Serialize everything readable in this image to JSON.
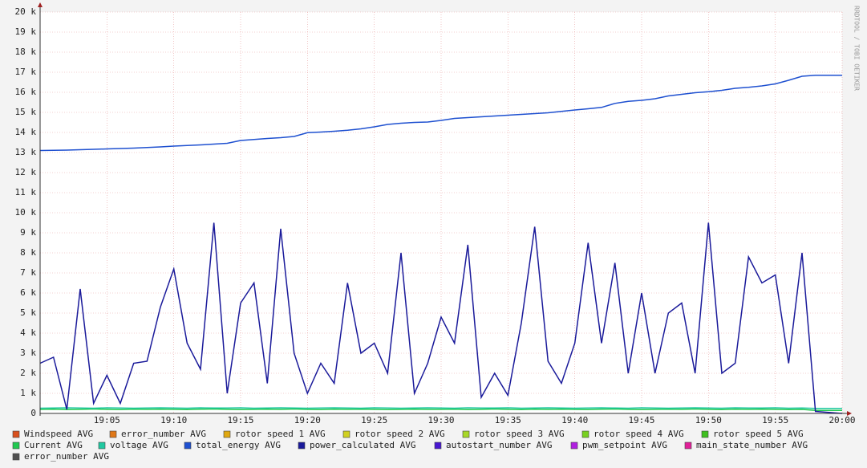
{
  "chart_data": {
    "type": "line",
    "watermark": "RRDTOOL / TOBI OETIKER",
    "x": [
      "19:00",
      "19:01",
      "19:02",
      "19:03",
      "19:04",
      "19:05",
      "19:06",
      "19:07",
      "19:08",
      "19:09",
      "19:10",
      "19:11",
      "19:12",
      "19:13",
      "19:14",
      "19:15",
      "19:16",
      "19:17",
      "19:18",
      "19:19",
      "19:20",
      "19:21",
      "19:22",
      "19:23",
      "19:24",
      "19:25",
      "19:26",
      "19:27",
      "19:28",
      "19:29",
      "19:30",
      "19:31",
      "19:32",
      "19:33",
      "19:34",
      "19:35",
      "19:36",
      "19:37",
      "19:38",
      "19:39",
      "19:40",
      "19:41",
      "19:42",
      "19:43",
      "19:44",
      "19:45",
      "19:46",
      "19:47",
      "19:48",
      "19:49",
      "19:50",
      "19:51",
      "19:52",
      "19:53",
      "19:54",
      "19:55",
      "19:56",
      "19:57",
      "19:58",
      "19:59",
      "20:00"
    ],
    "xlim": [
      "19:00",
      "20:00"
    ],
    "xticks": [
      "19:05",
      "19:10",
      "19:15",
      "19:20",
      "19:25",
      "19:30",
      "19:35",
      "19:40",
      "19:45",
      "19:50",
      "19:55",
      "20:00"
    ],
    "ylim": [
      0,
      20000
    ],
    "yticks": [
      0,
      {
        "value": 1000,
        "label": "1 k"
      },
      {
        "value": 2000,
        "label": "2 k"
      },
      {
        "value": 3000,
        "label": "3 k"
      },
      {
        "value": 4000,
        "label": "4 k"
      },
      {
        "value": 5000,
        "label": "5 k"
      },
      {
        "value": 6000,
        "label": "6 k"
      },
      {
        "value": 7000,
        "label": "7 k"
      },
      {
        "value": 8000,
        "label": "8 k"
      },
      {
        "value": 9000,
        "label": "9 k"
      },
      {
        "value": 10000,
        "label": "10 k"
      },
      {
        "value": 11000,
        "label": "11 k"
      },
      {
        "value": 12000,
        "label": "12 k"
      },
      {
        "value": 13000,
        "label": "13 k"
      },
      {
        "value": 14000,
        "label": "14 k"
      },
      {
        "value": 15000,
        "label": "15 k"
      },
      {
        "value": 16000,
        "label": "16 k"
      },
      {
        "value": 17000,
        "label": "17 k"
      },
      {
        "value": 18000,
        "label": "18 k"
      },
      {
        "value": 19000,
        "label": "19 k"
      },
      {
        "value": 20000,
        "label": "20 k"
      }
    ],
    "grid": true,
    "series": [
      {
        "name": "Windspeed AVG",
        "color": "#d8501e"
      },
      {
        "name": "error_number AVG",
        "color": "#e07818"
      },
      {
        "name": "rotor speed 1 AVG",
        "color": "#e0a810"
      },
      {
        "name": "rotor speed 2 AVG",
        "color": "#d0d020"
      },
      {
        "name": "rotor speed 3 AVG",
        "color": "#a8d828"
      },
      {
        "name": "rotor speed 4 AVG",
        "color": "#78d020"
      },
      {
        "name": "rotor speed 5 AVG",
        "color": "#40c020"
      },
      {
        "name": "Current AVG",
        "color": "#20c850",
        "values": [
          200,
          210,
          190,
          200,
          220,
          200,
          190,
          210,
          200,
          210,
          200,
          190,
          210,
          220,
          200,
          190,
          200,
          210,
          200,
          220,
          200,
          190,
          210,
          200,
          210,
          200,
          190,
          200,
          210,
          200,
          200,
          210,
          190,
          200,
          220,
          200,
          190,
          210,
          200,
          210,
          200,
          190,
          210,
          220,
          200,
          190,
          200,
          210,
          200,
          220,
          200,
          190,
          210,
          200,
          210,
          200,
          190,
          200,
          150,
          150,
          150
        ]
      },
      {
        "name": "voltage AVG",
        "color": "#20c8a0",
        "values": [
          260,
          270,
          280,
          270,
          260,
          280,
          270,
          260,
          270,
          280,
          270,
          260,
          280,
          270,
          270,
          280,
          260,
          270,
          280,
          270,
          260,
          270,
          280,
          270,
          260,
          280,
          270,
          260,
          270,
          280,
          270,
          260,
          280,
          270,
          270,
          280,
          260,
          270,
          280,
          270,
          260,
          270,
          280,
          270,
          260,
          280,
          270,
          260,
          270,
          280,
          270,
          260,
          280,
          270,
          270,
          280,
          260,
          270,
          250,
          250,
          250
        ]
      },
      {
        "name": "total_energy AVG",
        "color": "#1e50d0",
        "values": [
          13100,
          13110,
          13120,
          13140,
          13160,
          13180,
          13200,
          13220,
          13250,
          13280,
          13320,
          13350,
          13380,
          13420,
          13460,
          13600,
          13650,
          13700,
          13740,
          13800,
          13990,
          14020,
          14060,
          14110,
          14180,
          14280,
          14400,
          14460,
          14500,
          14520,
          14600,
          14700,
          14740,
          14780,
          14820,
          14860,
          14900,
          14940,
          14980,
          15050,
          15120,
          15180,
          15250,
          15450,
          15550,
          15600,
          15680,
          15820,
          15900,
          15980,
          16030,
          16100,
          16200,
          16250,
          16320,
          16420,
          16600,
          16800,
          16850,
          16850,
          16850
        ]
      },
      {
        "name": "power_calculated AVG",
        "color": "#1a1a9a",
        "values": [
          2500,
          2800,
          200,
          6200,
          500,
          1900,
          500,
          2500,
          2600,
          5300,
          7200,
          3500,
          2200,
          9500,
          1000,
          5500,
          6500,
          1500,
          9200,
          3000,
          1000,
          2500,
          1500,
          6500,
          3000,
          3500,
          2000,
          8000,
          1000,
          2500,
          4800,
          3500,
          8400,
          800,
          2000,
          900,
          4500,
          9300,
          2600,
          1500,
          3500,
          8500,
          3500,
          7500,
          2000,
          6000,
          2000,
          5000,
          5500,
          2000,
          9500,
          2000,
          2500,
          7800,
          6500,
          6900,
          2500,
          8000,
          100,
          50,
          0
        ]
      },
      {
        "name": "autostart_number AVG",
        "color": "#4818d0"
      },
      {
        "name": "pwm_setpoint AVG",
        "color": "#b020e0"
      },
      {
        "name": "main_state_number AVG",
        "color": "#e02098"
      },
      {
        "name": "error_number AVG",
        "color": "#505050"
      }
    ]
  }
}
